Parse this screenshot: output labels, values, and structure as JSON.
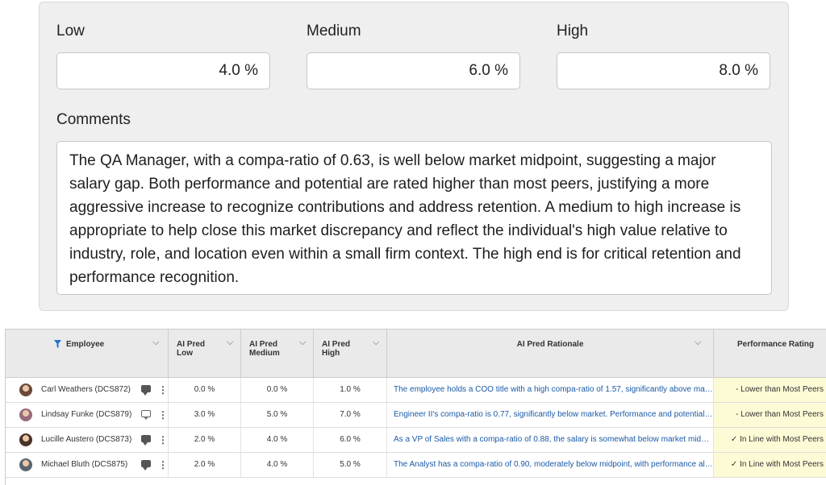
{
  "form": {
    "low": {
      "label": "Low",
      "value": "4.0 %"
    },
    "medium": {
      "label": "Medium",
      "value": "6.0 %"
    },
    "high": {
      "label": "High",
      "value": "8.0 %"
    },
    "comments_label": "Comments",
    "comments_text": "The QA Manager, with a compa-ratio of 0.63, is well below market midpoint, suggesting a major salary gap. Both performance and potential are rated higher than most peers, justifying a more aggressive increase to recognize contributions and address retention. A medium to high increase is appropriate to help close this market discrepancy and reflect the individual's high value relative to industry, role, and location even within a small firm context. The high end is for critical retention and performance recognition."
  },
  "table": {
    "headers": {
      "employee": "Employee",
      "low": "AI Pred Low",
      "medium": "AI Pred Medium",
      "high": "AI Pred High",
      "rationale": "AI Pred Rationale",
      "performance": "Performance Rating"
    },
    "rows": [
      {
        "name": "Carl Weathers (DCS872)",
        "low": "0.0 %",
        "medium": "0.0 %",
        "high": "1.0 %",
        "rationale": "The employee holds a COO title with a high compa-ratio of 1.57, significantly above mar…",
        "performance": "- Lower than Most Peers",
        "comment_icon": "comment-filled-icon",
        "avatar_color": "#6b4a3a"
      },
      {
        "name": "Lindsay Funke (DCS879)",
        "low": "3.0 %",
        "medium": "5.0 %",
        "high": "7.0 %",
        "rationale": "Engineer II's compa-ratio is 0.77, significantly below market. Performance and potential …",
        "performance": "- Lower than Most Peers",
        "comment_icon": "comment-outline-icon",
        "avatar_color": "#9a6a7e"
      },
      {
        "name": "Lucille Austero (DCS873)",
        "low": "2.0 %",
        "medium": "4.0 %",
        "high": "6.0 %",
        "rationale": "As a VP of Sales with a compa-ratio of 0.88, the salary is somewhat below market midp…",
        "performance": "✓ In Line with Most Peers",
        "comment_icon": "comment-filled-icon",
        "avatar_color": "#4a3328"
      },
      {
        "name": "Michael Bluth (DCS875)",
        "low": "2.0 %",
        "medium": "4.0 %",
        "high": "5.0 %",
        "rationale": "The Analyst has a compa-ratio of 0.90, moderately below midpoint, with performance ali…",
        "performance": "✓ In Line with Most Peers",
        "comment_icon": "comment-filled-icon",
        "avatar_color": "#5a6470"
      }
    ]
  }
}
